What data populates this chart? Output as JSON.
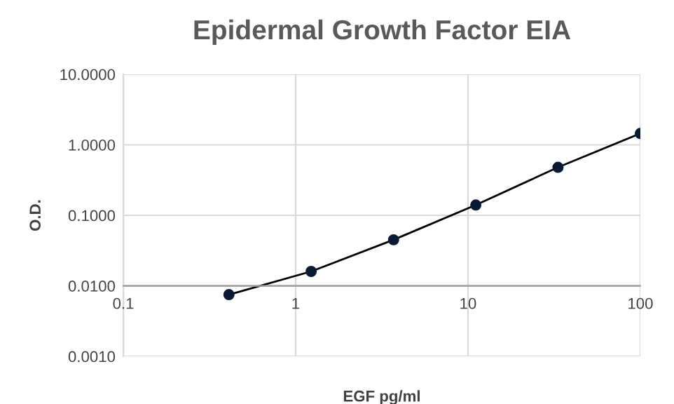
{
  "chart_data": {
    "type": "line",
    "title": "Epidermal Growth Factor EIA",
    "xlabel": "EGF pg/ml",
    "ylabel": "O.D.",
    "log": "xy",
    "x": [
      0.41,
      1.23,
      3.7,
      11.1,
      33.3,
      100
    ],
    "series": [
      {
        "color": "#0b1a33",
        "values": [
          0.0075,
          0.016,
          0.045,
          0.14,
          0.48,
          1.45
        ]
      }
    ],
    "xlim": [
      0.1,
      100
    ],
    "ylim": [
      0.001,
      10
    ],
    "xticks": [
      0.1,
      1,
      10,
      100
    ],
    "yticks": [
      {
        "value": 0.001,
        "label": "0.0010"
      },
      {
        "value": 0.01,
        "label": "0.0100"
      },
      {
        "value": 0.1,
        "label": "0.1000"
      },
      {
        "value": 1,
        "label": "1.0000"
      },
      {
        "value": 10,
        "label": "10.0000"
      }
    ],
    "grid": true,
    "marker": "circle",
    "line_style": "solid",
    "ref_lines": [
      {
        "axis": "y",
        "value": 0.01,
        "color": "#a6a6a6"
      }
    ]
  }
}
